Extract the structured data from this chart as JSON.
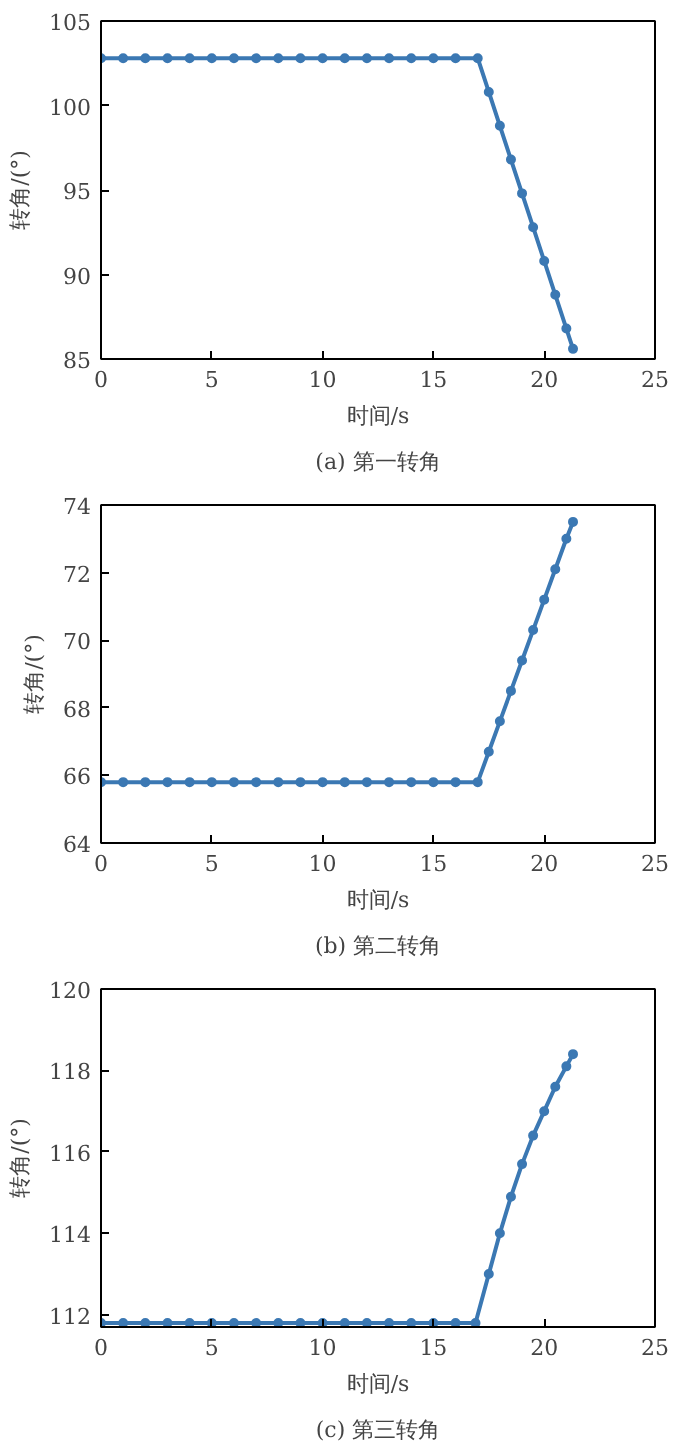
{
  "chart_data": [
    {
      "type": "line",
      "xlabel": "时间/s",
      "ylabel": "转角/(°)",
      "annotations": [
        "(a) 第一转角"
      ],
      "xlim": [
        0,
        25
      ],
      "ylim": [
        85,
        105
      ],
      "xticks": [
        0,
        5,
        10,
        15,
        20,
        25
      ],
      "yticks": [
        85,
        90,
        95,
        100,
        105
      ],
      "grid": false,
      "marker": "circle",
      "line_style": "solid",
      "x": [
        0,
        1,
        2,
        3,
        4,
        5,
        6,
        7,
        8,
        9,
        10,
        11,
        12,
        13,
        14,
        15,
        16,
        17,
        17.5,
        18,
        18.5,
        19,
        19.5,
        20,
        20.5,
        21,
        21.3
      ],
      "series": [
        {
          "color": "#3b78b3",
          "values": [
            102.8,
            102.8,
            102.8,
            102.8,
            102.8,
            102.8,
            102.8,
            102.8,
            102.8,
            102.8,
            102.8,
            102.8,
            102.8,
            102.8,
            102.8,
            102.8,
            102.8,
            102.8,
            100.8,
            98.8,
            96.8,
            94.8,
            92.8,
            90.8,
            88.8,
            86.8,
            85.6
          ]
        }
      ]
    },
    {
      "type": "line",
      "xlabel": "时间/s",
      "ylabel": "转角/(°)",
      "annotations": [
        "(b) 第二转角"
      ],
      "xlim": [
        0,
        25
      ],
      "ylim": [
        64,
        74
      ],
      "xticks": [
        0,
        5,
        10,
        15,
        20,
        25
      ],
      "yticks": [
        64,
        66,
        68,
        70,
        72,
        74
      ],
      "grid": false,
      "marker": "circle",
      "line_style": "solid",
      "x": [
        0,
        1,
        2,
        3,
        4,
        5,
        6,
        7,
        8,
        9,
        10,
        11,
        12,
        13,
        14,
        15,
        16,
        17,
        17.5,
        18,
        18.5,
        19,
        19.5,
        20,
        20.5,
        21,
        21.3
      ],
      "series": [
        {
          "color": "#3b78b3",
          "values": [
            65.8,
            65.8,
            65.8,
            65.8,
            65.8,
            65.8,
            65.8,
            65.8,
            65.8,
            65.8,
            65.8,
            65.8,
            65.8,
            65.8,
            65.8,
            65.8,
            65.8,
            65.8,
            66.7,
            67.6,
            68.5,
            69.4,
            70.3,
            71.2,
            72.1,
            73.0,
            73.5
          ]
        }
      ]
    },
    {
      "type": "line",
      "xlabel": "时间/s",
      "ylabel": "转角/(°)",
      "annotations": [
        "(c) 第三转角"
      ],
      "xlim": [
        0,
        25
      ],
      "ylim": [
        111.7,
        120
      ],
      "xticks": [
        0,
        5,
        10,
        15,
        20,
        25
      ],
      "yticks": [
        112,
        114,
        116,
        118,
        120
      ],
      "grid": false,
      "marker": "circle",
      "line_style": "solid",
      "x": [
        0,
        1,
        2,
        3,
        4,
        5,
        6,
        7,
        8,
        9,
        10,
        11,
        12,
        13,
        14,
        15,
        16,
        16.9,
        17.5,
        18,
        18.5,
        19,
        19.5,
        20,
        20.5,
        21,
        21.3
      ],
      "series": [
        {
          "color": "#3b78b3",
          "values": [
            111.8,
            111.8,
            111.8,
            111.8,
            111.8,
            111.8,
            111.8,
            111.8,
            111.8,
            111.8,
            111.8,
            111.8,
            111.8,
            111.8,
            111.8,
            111.8,
            111.8,
            111.8,
            113.0,
            114.0,
            114.9,
            115.7,
            116.4,
            117.0,
            117.6,
            118.1,
            118.4
          ]
        }
      ]
    }
  ]
}
